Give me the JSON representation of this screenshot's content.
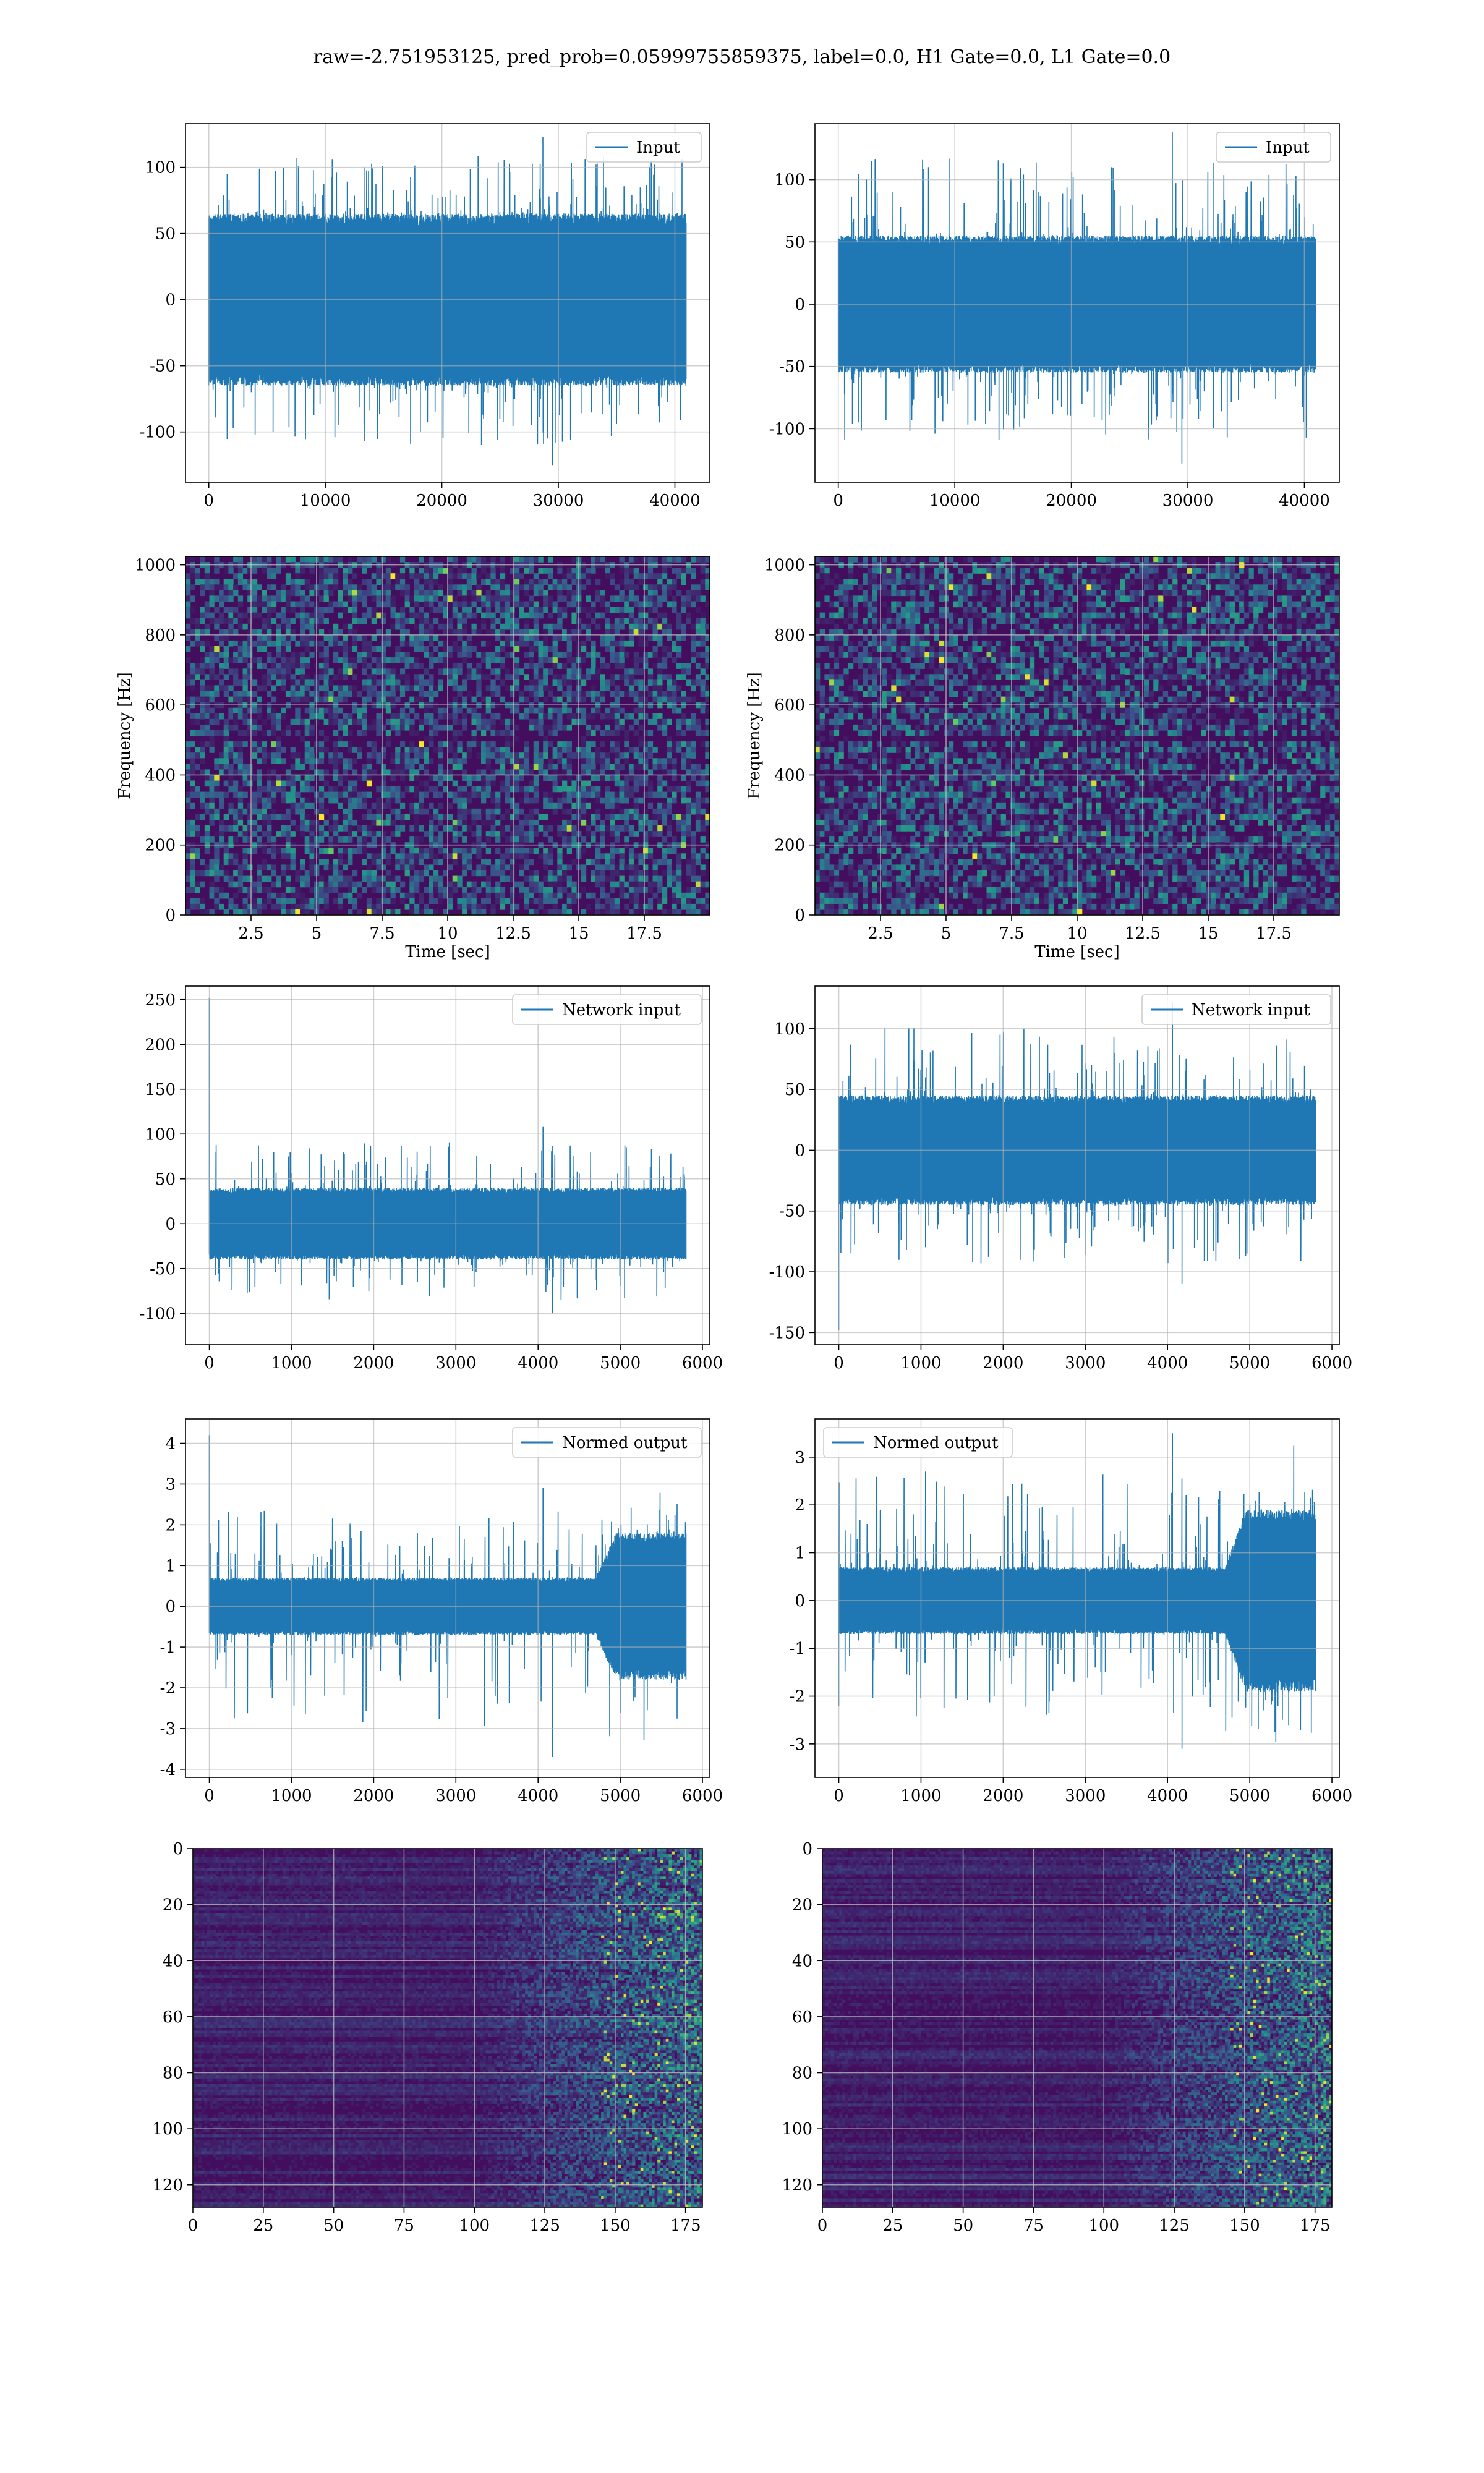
{
  "suptitle": "raw=-2.751953125, pred_prob=0.05999755859375, label=0.0, H1 Gate=0.0, L1 Gate=0.0",
  "colors": {
    "series": "#1f77b4",
    "grid": "#b0b0b0",
    "viridis_dark": "#440154",
    "viridis_mid": "#21918c",
    "viridis_bright": "#fde725"
  },
  "chart_data": [
    {
      "id": "r1c1",
      "type": "line",
      "legend": "Input",
      "legend_loc": "upper right",
      "xlim": [
        -2000,
        43000
      ],
      "ylim": [
        -138,
        133
      ],
      "xticks": [
        0,
        10000,
        20000,
        30000,
        40000
      ],
      "yticks": [
        -100,
        -50,
        0,
        50,
        100
      ],
      "grid": true,
      "data": {
        "x_range": [
          0,
          40960
        ],
        "n": 2000,
        "envelope_core": [
          -65,
          65
        ],
        "peaks": [
          -125,
          123
        ],
        "center": 0
      }
    },
    {
      "id": "r1c2",
      "type": "line",
      "legend": "Input",
      "legend_loc": "upper right",
      "xlim": [
        -2000,
        43000
      ],
      "ylim": [
        -143,
        145
      ],
      "xticks": [
        0,
        10000,
        20000,
        30000,
        40000
      ],
      "yticks": [
        -100,
        -50,
        0,
        50,
        100
      ],
      "grid": true,
      "data": {
        "x_range": [
          0,
          40960
        ],
        "n": 2000,
        "envelope_core": [
          -55,
          55
        ],
        "peaks": [
          -128,
          138
        ],
        "center": 0
      }
    },
    {
      "id": "r2c1",
      "type": "heatmap",
      "xlabel": "Time [sec]",
      "ylabel": "Frequency [Hz]",
      "xlim": [
        0,
        20
      ],
      "ylim": [
        0,
        1024
      ],
      "xticks": [
        2.5,
        5.0,
        7.5,
        10.0,
        12.5,
        15.0,
        17.5
      ],
      "yticks": [
        0,
        200,
        400,
        600,
        800,
        1000
      ],
      "grid": true,
      "colormap": "viridis"
    },
    {
      "id": "r2c2",
      "type": "heatmap",
      "xlabel": "Time [sec]",
      "ylabel": "Frequency [Hz]",
      "xlim": [
        0,
        20
      ],
      "ylim": [
        0,
        1024
      ],
      "xticks": [
        2.5,
        5.0,
        7.5,
        10.0,
        12.5,
        15.0,
        17.5
      ],
      "yticks": [
        0,
        200,
        400,
        600,
        800,
        1000
      ],
      "grid": true,
      "colormap": "viridis"
    },
    {
      "id": "r3c1",
      "type": "line",
      "legend": "Network input",
      "legend_loc": "upper right",
      "xlim": [
        -290,
        6090
      ],
      "ylim": [
        -135,
        265
      ],
      "xticks": [
        0,
        1000,
        2000,
        3000,
        4000,
        5000,
        6000
      ],
      "yticks": [
        -100,
        -50,
        0,
        50,
        100,
        150,
        200,
        250
      ],
      "grid": true,
      "data": {
        "x_range": [
          0,
          5800
        ],
        "n": 1600,
        "envelope_core": [
          -40,
          40
        ],
        "peaks": [
          -100,
          108
        ],
        "center": 0,
        "spike": {
          "x": 0,
          "y": 252
        }
      }
    },
    {
      "id": "r3c2",
      "type": "line",
      "legend": "Network input",
      "legend_loc": "upper right",
      "xlim": [
        -290,
        6090
      ],
      "ylim": [
        -160,
        135
      ],
      "xticks": [
        0,
        1000,
        2000,
        3000,
        4000,
        5000,
        6000
      ],
      "yticks": [
        -150,
        -100,
        -50,
        0,
        50,
        100
      ],
      "grid": true,
      "data": {
        "x_range": [
          0,
          5800
        ],
        "n": 1600,
        "envelope_core": [
          -45,
          45
        ],
        "peaks": [
          -110,
          122
        ],
        "center": 0,
        "spike": {
          "x": 0,
          "y": -148
        }
      }
    },
    {
      "id": "r4c1",
      "type": "line",
      "legend": "Normed output",
      "legend_loc": "upper right",
      "xlim": [
        -290,
        6090
      ],
      "ylim": [
        -4.2,
        4.6
      ],
      "xticks": [
        0,
        1000,
        2000,
        3000,
        4000,
        5000,
        6000
      ],
      "yticks": [
        -4,
        -3,
        -2,
        -1,
        0,
        1,
        2,
        3,
        4
      ],
      "grid": true,
      "data": {
        "x_range": [
          0,
          5800
        ],
        "n": 1600,
        "envelope_core": [
          -0.7,
          0.7
        ],
        "peaks": [
          -3.7,
          2.9
        ],
        "center": 0,
        "spike": {
          "x": 0,
          "y": 4.2
        },
        "burst": {
          "from": 4700,
          "to": 5800,
          "core": 1.8
        }
      }
    },
    {
      "id": "r4c2",
      "type": "line",
      "legend": "Normed output",
      "legend_loc": "upper left",
      "xlim": [
        -290,
        6090
      ],
      "ylim": [
        -3.7,
        3.8
      ],
      "xticks": [
        0,
        1000,
        2000,
        3000,
        4000,
        5000,
        6000
      ],
      "yticks": [
        -3,
        -2,
        -1,
        0,
        1,
        2,
        3
      ],
      "grid": true,
      "data": {
        "x_range": [
          0,
          5800
        ],
        "n": 1600,
        "envelope_core": [
          -0.7,
          0.7
        ],
        "peaks": [
          -3.1,
          3.5
        ],
        "center": 0,
        "spike": {
          "x": 0,
          "y": -2.2
        },
        "burst": {
          "from": 4700,
          "to": 5800,
          "core": 1.9
        }
      }
    },
    {
      "id": "r5c1",
      "type": "heatmap",
      "colormap": "viridis",
      "xlim": [
        0,
        181
      ],
      "ylim": [
        128,
        0
      ],
      "xticks": [
        0,
        25,
        50,
        75,
        100,
        125,
        150,
        175
      ],
      "yticks": [
        0,
        20,
        40,
        60,
        80,
        100,
        120
      ],
      "grid": true
    },
    {
      "id": "r5c2",
      "type": "heatmap",
      "colormap": "viridis",
      "xlim": [
        0,
        181
      ],
      "ylim": [
        128,
        0
      ],
      "xticks": [
        0,
        25,
        50,
        75,
        100,
        125,
        150,
        175
      ],
      "yticks": [
        0,
        20,
        40,
        60,
        80,
        100,
        120
      ],
      "grid": true
    }
  ]
}
